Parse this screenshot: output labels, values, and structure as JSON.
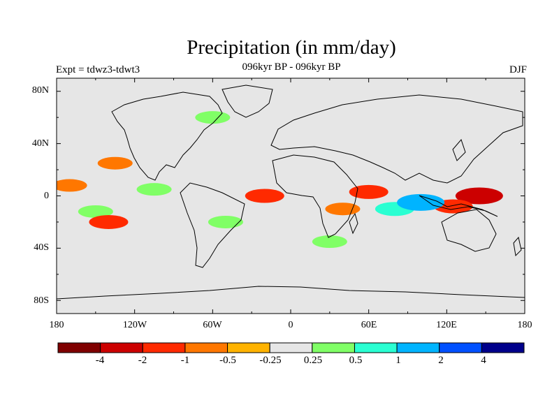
{
  "title": "Precipitation (in mm/day)",
  "subtitle": "096kyr BP - 096kyr BP",
  "left_label": "Expt = tdwz3-tdwt3",
  "right_label": "DJF",
  "lat_labels": [
    "80N",
    "40N",
    "0",
    "40S",
    "80S"
  ],
  "lon_labels": [
    "180",
    "120W",
    "60W",
    "0",
    "60E",
    "120E",
    "180"
  ],
  "colorbar": {
    "colors": [
      "#7f0000",
      "#cc0000",
      "#ff2a00",
      "#ff7700",
      "#ffb300",
      "#e6e6e6",
      "#80ff66",
      "#2affd2",
      "#00b4ff",
      "#0050ff",
      "#00008b"
    ],
    "labels": [
      "-4",
      "-2",
      "-1",
      "-0.5",
      "-0.25",
      "0.25",
      "0.5",
      "1",
      "2",
      "4"
    ]
  },
  "chart_data": {
    "type": "heatmap",
    "title": "Precipitation (in mm/day)",
    "subtitle": "096kyr BP - 096kyr BP",
    "experiment": "Expt = tdwz3-tdwt3",
    "season": "DJF",
    "lon_range": [
      -180,
      180
    ],
    "lat_range": [
      -90,
      90
    ],
    "contour_levels": [
      -4,
      -2,
      -1,
      -0.5,
      -0.25,
      0.25,
      0.5,
      1,
      2,
      4
    ],
    "anomalies": [
      {
        "lon": -170,
        "lat": 8,
        "value": -0.5
      },
      {
        "lon": -135,
        "lat": 25,
        "value": -0.5
      },
      {
        "lon": -150,
        "lat": -12,
        "value": 0.5
      },
      {
        "lon": -140,
        "lat": -20,
        "value": -1
      },
      {
        "lon": -105,
        "lat": 5,
        "value": 0.5
      },
      {
        "lon": -20,
        "lat": 0,
        "value": -1
      },
      {
        "lon": 40,
        "lat": -10,
        "value": -0.5
      },
      {
        "lon": 80,
        "lat": -10,
        "value": 1
      },
      {
        "lon": 60,
        "lat": 3,
        "value": -1
      },
      {
        "lon": 145,
        "lat": 0,
        "value": -2
      },
      {
        "lon": 125,
        "lat": -8,
        "value": -1
      },
      {
        "lon": 100,
        "lat": -5,
        "value": 2
      },
      {
        "lon": 30,
        "lat": -35,
        "value": 0.5
      },
      {
        "lon": -50,
        "lat": -20,
        "value": 0.5
      },
      {
        "lon": -60,
        "lat": 60,
        "value": 0.5
      }
    ]
  }
}
